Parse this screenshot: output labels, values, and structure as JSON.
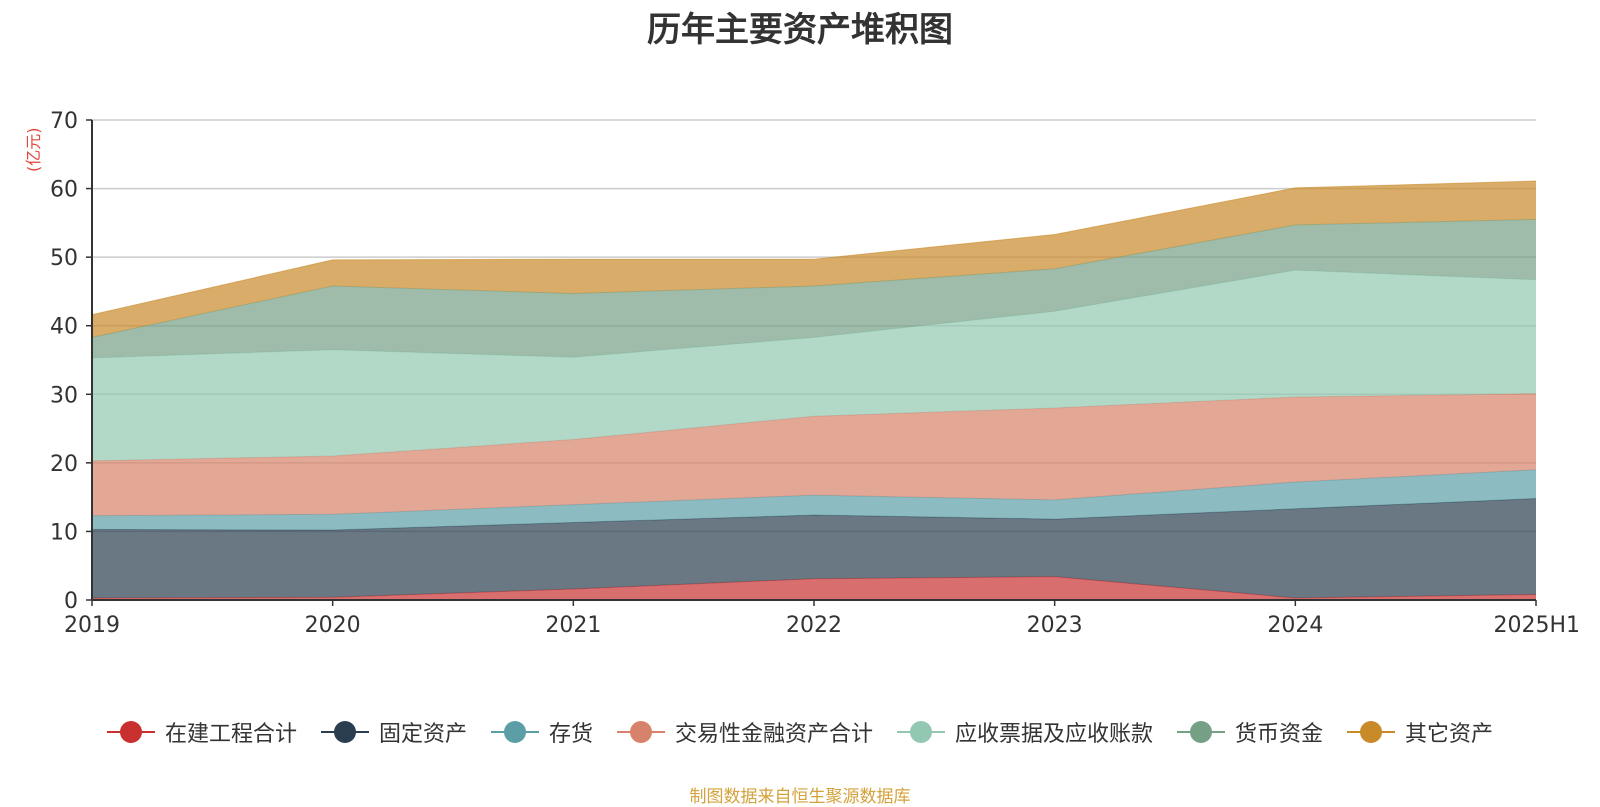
{
  "chart_data": {
    "type": "area",
    "stacked": true,
    "title": "历年主要资产堆积图",
    "unit_label": "(亿元)",
    "categories": [
      "2019",
      "2020",
      "2021",
      "2022",
      "2023",
      "2024",
      "2025H1"
    ],
    "ylim": [
      0,
      70
    ],
    "yticks": [
      "0",
      "10",
      "20",
      "30",
      "40",
      "50",
      "60",
      "70"
    ],
    "grid": true,
    "legend_position": "bottom",
    "series": [
      {
        "name": "在建工程合计",
        "color": "#c8312f",
        "values": [
          0.3,
          0.4,
          1.6,
          3.1,
          3.4,
          0.3,
          0.8
        ]
      },
      {
        "name": "固定资产",
        "color": "#2b3e50",
        "values": [
          10.0,
          9.8,
          9.7,
          9.3,
          8.4,
          13.0,
          14.0
        ]
      },
      {
        "name": "存货",
        "color": "#5b9ea6",
        "values": [
          2.0,
          2.3,
          2.6,
          2.9,
          2.8,
          3.9,
          4.2
        ]
      },
      {
        "name": "交易性金融资产合计",
        "color": "#d7826a",
        "values": [
          8.0,
          8.5,
          9.5,
          11.5,
          13.4,
          12.4,
          11.1
        ]
      },
      {
        "name": "应收票据及应收账款",
        "color": "#92c8b1",
        "values": [
          15.0,
          15.5,
          12.0,
          11.5,
          14.1,
          18.5,
          16.6
        ]
      },
      {
        "name": "货币资金",
        "color": "#75a085",
        "values": [
          3.0,
          9.3,
          9.3,
          7.5,
          6.2,
          6.6,
          8.8
        ]
      },
      {
        "name": "其它资产",
        "color": "#c98a2a",
        "values": [
          3.3,
          3.8,
          5.0,
          3.9,
          5.0,
          5.4,
          5.6
        ]
      }
    ]
  },
  "footer": {
    "source": "制图数据来自恒生聚源数据库"
  }
}
